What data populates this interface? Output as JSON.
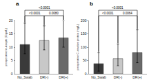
{
  "chart_data": [
    {
      "type": "bar",
      "title": "a",
      "ylabel": "preoperative leukocyte (Giga/L)",
      "categories": [
        "No_Swab",
        "DR(-)",
        "DR(+)"
      ],
      "values": [
        11.0,
        12.5,
        13.5
      ],
      "err_upper": [
        8.0,
        5.5,
        6.5
      ],
      "err_lower": [
        3.5,
        3.5,
        3.5
      ],
      "colors": [
        "#3a3a3a",
        "#c8c8c8",
        "#6a6a6a"
      ],
      "ylim": [
        0,
        20
      ],
      "yticks": [
        0,
        5,
        10,
        15,
        20
      ],
      "grid": false,
      "annotations": [
        {
          "text": "<0.0001",
          "categories": [
            "No_Swab",
            "DR(-)"
          ]
        },
        {
          "text": "0.0080",
          "categories": [
            "DR(-)",
            "DR(+)"
          ]
        },
        {
          "text": "<0.0001",
          "categories": [
            "No_Swab",
            "DR(+)"
          ]
        }
      ]
    },
    {
      "type": "bar",
      "title": "b",
      "ylabel": "preoperative C-reactive protein (mg/L)",
      "categories": [
        "No_Swab",
        "DR(-)",
        "DR(+)"
      ],
      "values": [
        38,
        57,
        80
      ],
      "err_upper": [
        42,
        55,
        85
      ],
      "err_lower": [
        28,
        27,
        38
      ],
      "colors": [
        "#3a3a3a",
        "#c8c8c8",
        "#6a6a6a"
      ],
      "ylim": [
        0,
        200
      ],
      "yticks": [
        0,
        50,
        100,
        150,
        200
      ],
      "grid": false,
      "annotations": [
        {
          "text": "<0.0001",
          "categories": [
            "No_Swab",
            "DR(-)"
          ]
        },
        {
          "text": "0.0064",
          "categories": [
            "DR(-)",
            "DR(+)"
          ]
        },
        {
          "text": "<0.0001",
          "categories": [
            "No_Swab",
            "DR(+)"
          ]
        }
      ]
    }
  ]
}
